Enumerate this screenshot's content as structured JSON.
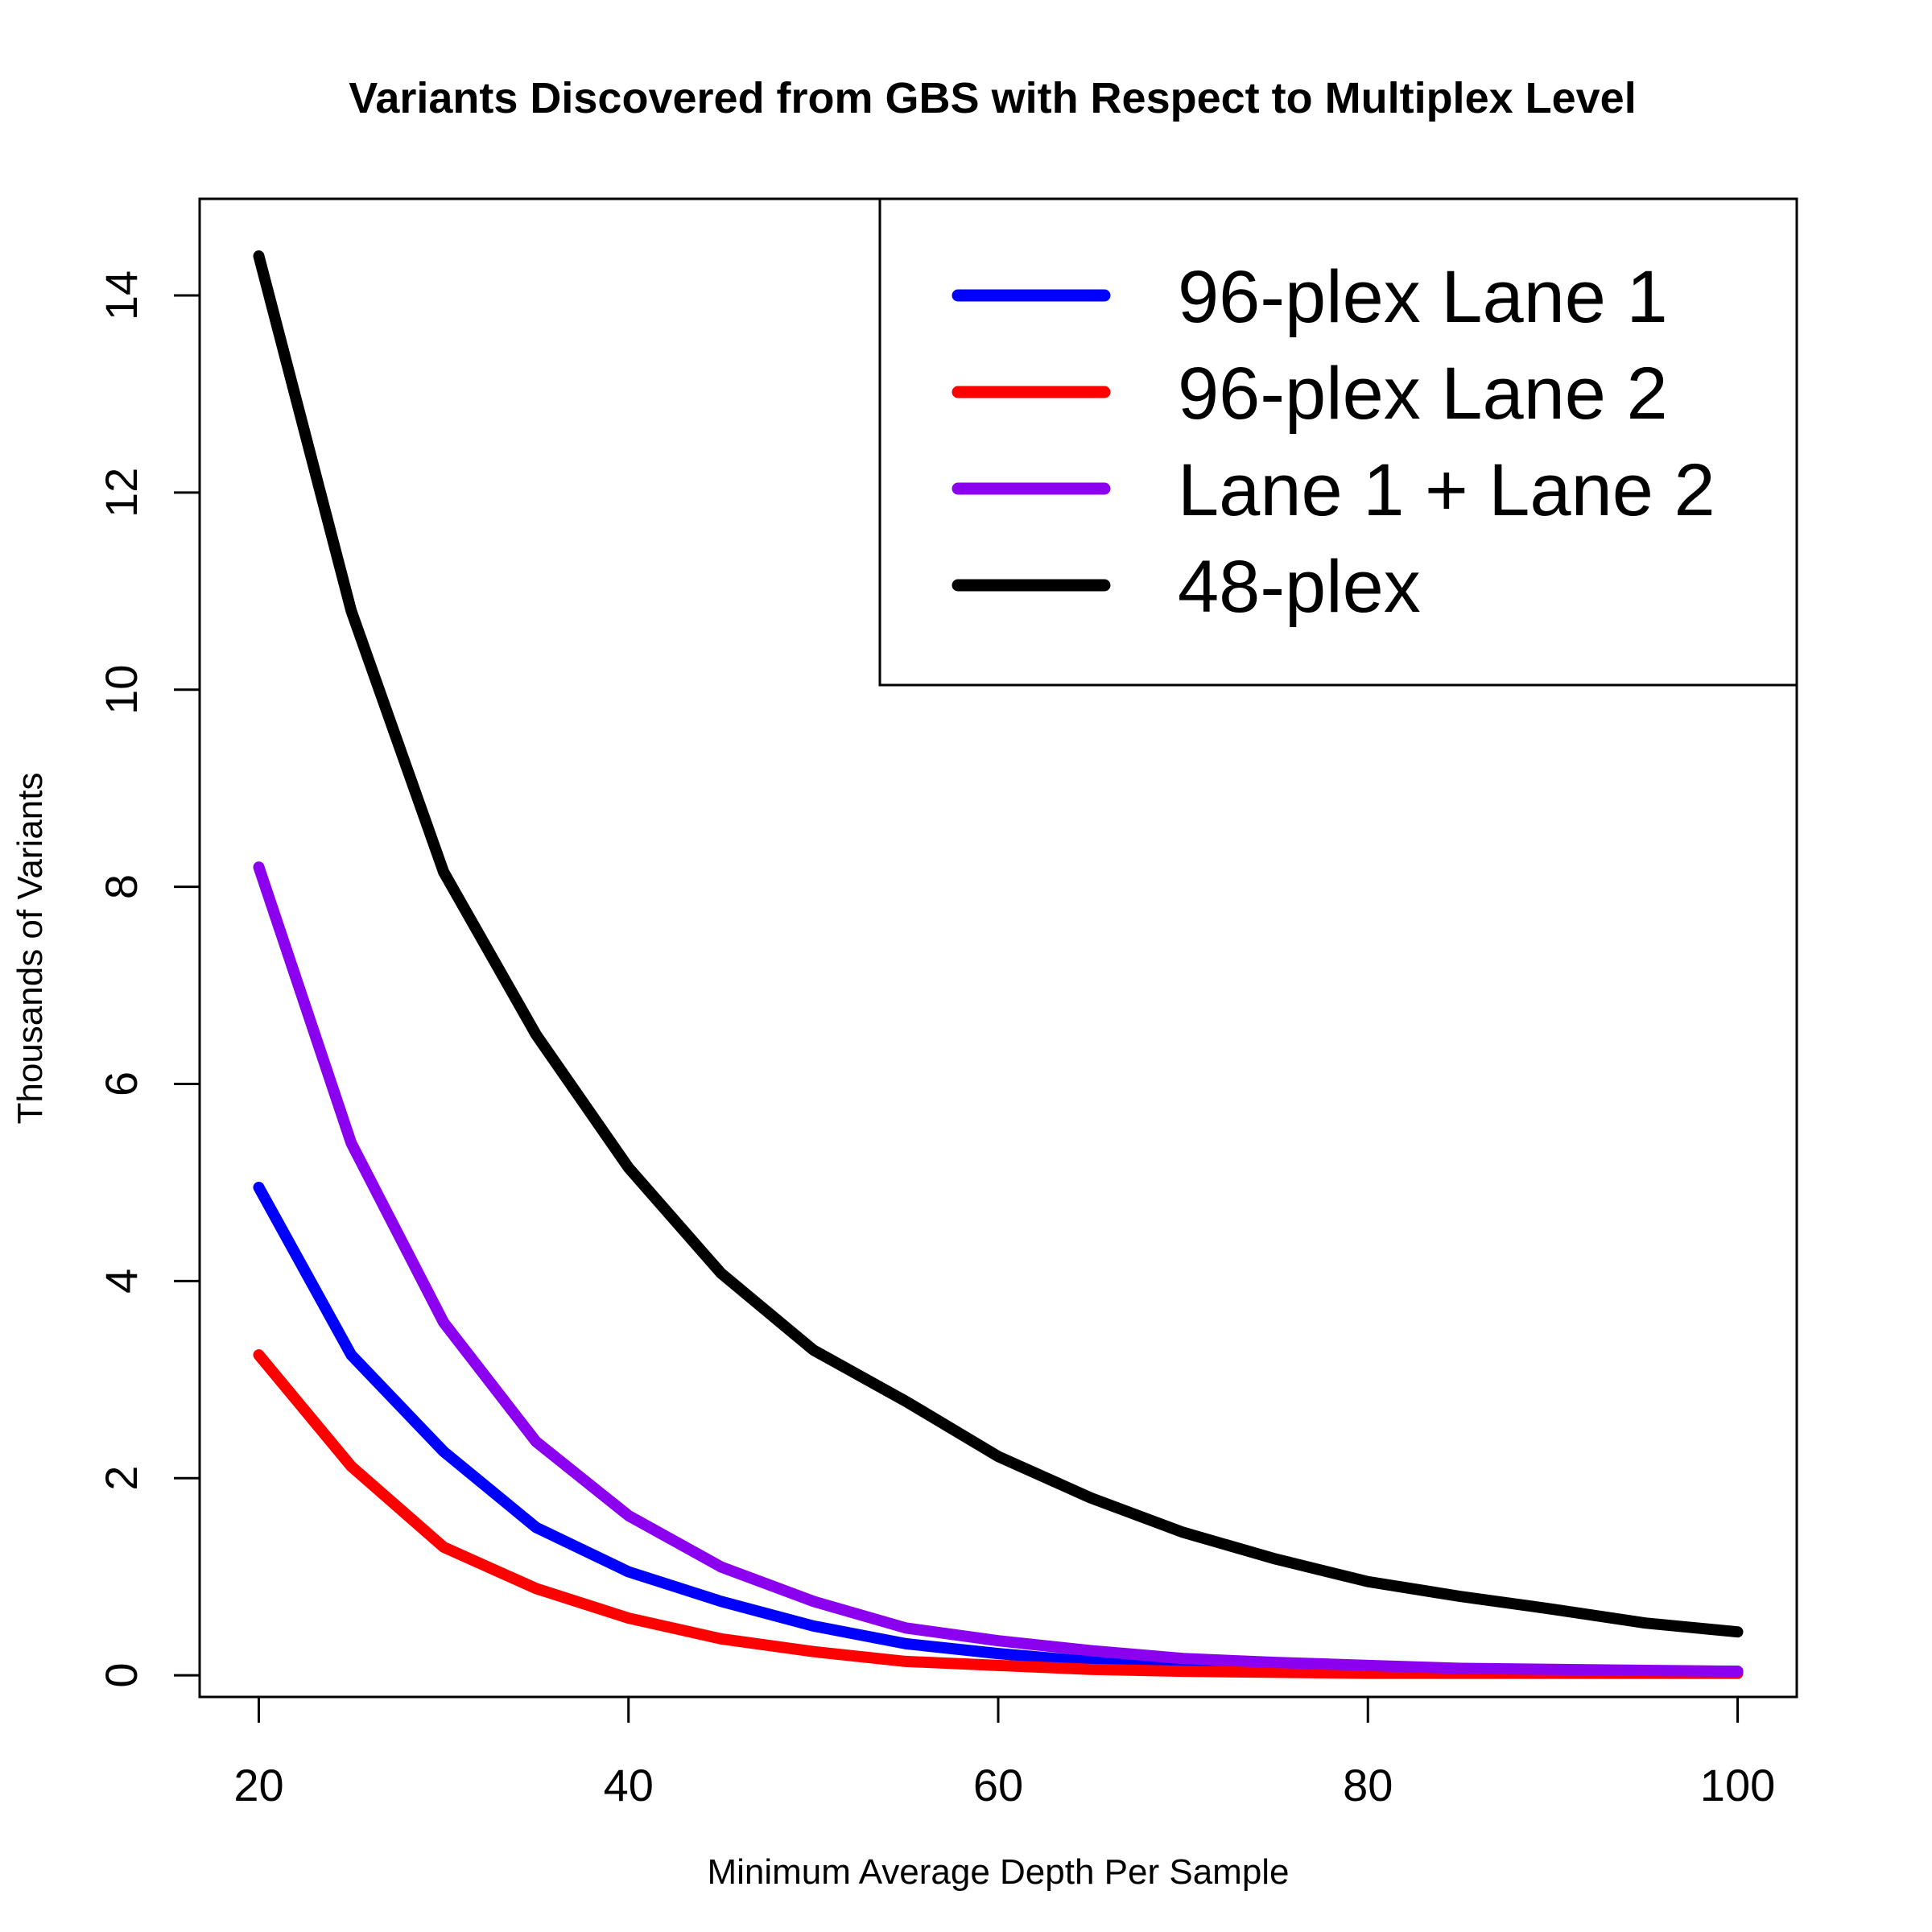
{
  "chart_data": {
    "type": "line",
    "title": "Variants Discovered from GBS with Respect to Multiplex Level",
    "xlabel": "Minimum Average Depth Per Sample",
    "ylabel": "Thousands of Variants",
    "xlim": [
      16.8,
      103.2
    ],
    "ylim": [
      -0.22,
      14.98
    ],
    "xticks": [
      20,
      40,
      60,
      80,
      100
    ],
    "xtick_labels": [
      "20",
      "40",
      "60",
      "80",
      "100"
    ],
    "yticks": [
      0,
      2,
      4,
      6,
      8,
      10,
      12,
      14
    ],
    "ytick_labels": [
      "0",
      "2",
      "4",
      "6",
      "8",
      "10",
      "12",
      "14"
    ],
    "grid": false,
    "legend_position": "top-right",
    "x": [
      20,
      25,
      30,
      35,
      40,
      45,
      50,
      55,
      60,
      65,
      70,
      75,
      80,
      85,
      90,
      95,
      100
    ],
    "series": [
      {
        "name": "96-plex Lane 1",
        "color": "#0000ff",
        "values": [
          4.95,
          3.25,
          2.27,
          1.5,
          1.05,
          0.75,
          0.5,
          0.32,
          0.22,
          0.14,
          0.09,
          0.07,
          0.06,
          0.05,
          0.04,
          0.04,
          0.04
        ]
      },
      {
        "name": "96-plex Lane 2",
        "color": "#ff0000",
        "values": [
          3.25,
          2.12,
          1.3,
          0.88,
          0.58,
          0.37,
          0.24,
          0.14,
          0.1,
          0.06,
          0.04,
          0.03,
          0.02,
          0.02,
          0.02,
          0.02,
          0.02
        ]
      },
      {
        "name": "Lane 1 + Lane 2",
        "color": "#8b00ee",
        "values": [
          8.2,
          5.4,
          3.58,
          2.37,
          1.62,
          1.1,
          0.75,
          0.48,
          0.35,
          0.25,
          0.17,
          0.13,
          0.1,
          0.07,
          0.06,
          0.05,
          0.04
        ]
      },
      {
        "name": "48-plex",
        "color": "#000000",
        "values": [
          14.4,
          10.8,
          8.15,
          6.5,
          5.15,
          4.08,
          3.3,
          2.78,
          2.22,
          1.8,
          1.45,
          1.18,
          0.95,
          0.8,
          0.67,
          0.53,
          0.44
        ]
      }
    ]
  }
}
